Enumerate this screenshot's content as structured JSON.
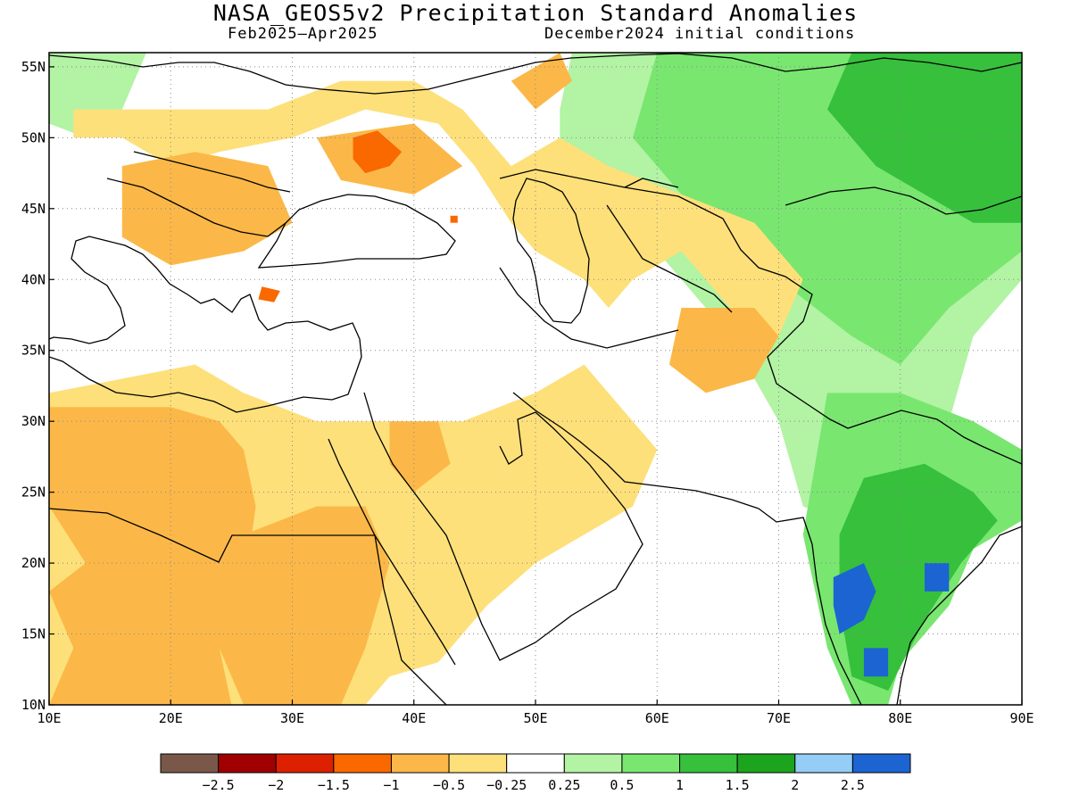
{
  "header": {
    "title": "NASA_GEOS5v2 Precipitation Standard Anomalies",
    "period": "Feb2025–Apr2025",
    "init": "December2024 initial conditions"
  },
  "chart_data": {
    "type": "heatmap",
    "variable": "Precipitation Standard Anomalies",
    "grid": "dotted",
    "x_axis": {
      "range": [
        10,
        90
      ],
      "ticks": [
        10,
        20,
        30,
        40,
        50,
        60,
        70,
        80,
        90
      ],
      "tick_labels": [
        "10E",
        "20E",
        "30E",
        "40E",
        "50E",
        "60E",
        "70E",
        "80E",
        "90E"
      ]
    },
    "y_axis": {
      "range": [
        10,
        56
      ],
      "ticks": [
        10,
        15,
        20,
        25,
        30,
        35,
        40,
        45,
        50,
        55
      ],
      "tick_labels": [
        "10N",
        "15N",
        "20N",
        "25N",
        "30N",
        "35N",
        "40N",
        "45N",
        "50N",
        "55N"
      ]
    },
    "colorbar": {
      "colors": [
        "#7a5849",
        "#a00000",
        "#dc2000",
        "#fa6800",
        "#fbb848",
        "#fde07a",
        "#ffffff",
        "#b2f3a4",
        "#79e670",
        "#36c03c",
        "#1ca41e",
        "#94cdf6",
        "#1b64d2"
      ],
      "labels": [
        "−2.5",
        "−2",
        "−1.5",
        "−1",
        "−0.5",
        "−0.25",
        "0.25",
        "0.5",
        "1",
        "1.5",
        "2",
        "2.5"
      ]
    },
    "regions": [
      {
        "category": 0.5,
        "color": "#b2f3a4",
        "points": [
          [
            53,
            56
          ],
          [
            90,
            56
          ],
          [
            90,
            40
          ],
          [
            86,
            36
          ],
          [
            84,
            30
          ],
          [
            82,
            24
          ],
          [
            78,
            22
          ],
          [
            72,
            24
          ],
          [
            70,
            30
          ],
          [
            66,
            36
          ],
          [
            62,
            40
          ],
          [
            60,
            42
          ],
          [
            56,
            44
          ],
          [
            52,
            46
          ],
          [
            52,
            52
          ]
        ]
      },
      {
        "category": 1,
        "color": "#79e670",
        "points": [
          [
            60,
            56
          ],
          [
            90,
            56
          ],
          [
            90,
            42
          ],
          [
            84,
            38
          ],
          [
            80,
            34
          ],
          [
            76,
            36
          ],
          [
            70,
            40
          ],
          [
            66,
            44
          ],
          [
            62,
            46
          ],
          [
            58,
            50
          ]
        ]
      },
      {
        "category": 1.5,
        "color": "#36c03c",
        "points": [
          [
            76,
            56
          ],
          [
            90,
            56
          ],
          [
            90,
            44
          ],
          [
            86,
            44
          ],
          [
            82,
            46
          ],
          [
            78,
            48
          ],
          [
            74,
            52
          ]
        ]
      },
      {
        "category": 1,
        "color": "#79e670",
        "points": [
          [
            74,
            32
          ],
          [
            80,
            32
          ],
          [
            86,
            30
          ],
          [
            90,
            28
          ],
          [
            90,
            23
          ],
          [
            86,
            21
          ],
          [
            84,
            17
          ],
          [
            80,
            13
          ],
          [
            79,
            10
          ],
          [
            76,
            10
          ],
          [
            74,
            14
          ],
          [
            73,
            18
          ],
          [
            72,
            22
          ],
          [
            73,
            27
          ]
        ]
      },
      {
        "category": 1.5,
        "color": "#36c03c",
        "points": [
          [
            77,
            26
          ],
          [
            82,
            27
          ],
          [
            86,
            25
          ],
          [
            88,
            23
          ],
          [
            85,
            20
          ],
          [
            82,
            16
          ],
          [
            79,
            11
          ],
          [
            76,
            12
          ],
          [
            75,
            17
          ],
          [
            75,
            22
          ]
        ]
      },
      {
        "category": 2.5,
        "color": "#1b64d2",
        "points": [
          [
            74.5,
            19
          ],
          [
            77,
            20
          ],
          [
            78,
            18
          ],
          [
            77,
            16
          ],
          [
            75,
            15
          ],
          [
            74.5,
            17
          ]
        ]
      },
      {
        "category": 2.5,
        "color": "#1b64d2",
        "points": [
          [
            77,
            14
          ],
          [
            79,
            14
          ],
          [
            79,
            12
          ],
          [
            77,
            12
          ]
        ]
      },
      {
        "category": 2.5,
        "color": "#1b64d2",
        "points": [
          [
            82,
            20
          ],
          [
            84,
            20
          ],
          [
            84,
            18
          ],
          [
            82,
            18
          ]
        ]
      },
      {
        "category": 0.5,
        "color": "#b2f3a4",
        "points": [
          [
            10,
            56
          ],
          [
            18,
            56
          ],
          [
            16,
            52
          ],
          [
            13,
            50
          ],
          [
            10,
            51
          ]
        ]
      },
      {
        "category": -0.25,
        "color": "#fde07a",
        "points": [
          [
            12,
            50
          ],
          [
            16,
            50
          ],
          [
            20,
            48
          ],
          [
            24,
            49
          ],
          [
            30,
            50
          ],
          [
            36,
            52
          ],
          [
            42,
            51
          ],
          [
            45,
            48
          ],
          [
            48,
            44
          ],
          [
            50,
            42
          ],
          [
            54,
            40
          ],
          [
            56,
            38
          ],
          [
            58,
            40
          ],
          [
            62,
            42
          ],
          [
            66,
            38
          ],
          [
            70,
            36
          ],
          [
            72,
            40
          ],
          [
            68,
            44
          ],
          [
            62,
            46
          ],
          [
            56,
            48
          ],
          [
            52,
            50
          ],
          [
            48,
            48
          ],
          [
            46,
            50
          ],
          [
            44,
            52
          ],
          [
            40,
            54
          ],
          [
            34,
            54
          ],
          [
            28,
            52
          ],
          [
            22,
            52
          ],
          [
            16,
            52
          ],
          [
            12,
            52
          ]
        ]
      },
      {
        "category": -0.25,
        "color": "#fde07a",
        "points": [
          [
            10,
            32
          ],
          [
            22,
            34
          ],
          [
            26,
            32
          ],
          [
            32,
            30
          ],
          [
            36,
            30
          ],
          [
            44,
            30
          ],
          [
            50,
            32
          ],
          [
            54,
            34
          ],
          [
            58,
            30
          ],
          [
            60,
            28
          ],
          [
            58,
            24
          ],
          [
            54,
            22
          ],
          [
            50,
            20
          ],
          [
            46,
            17
          ],
          [
            42,
            13
          ],
          [
            38,
            12
          ],
          [
            36,
            10
          ],
          [
            10,
            10
          ]
        ]
      },
      {
        "category": -0.5,
        "color": "#fbb848",
        "points": [
          [
            10,
            31
          ],
          [
            20,
            31
          ],
          [
            24,
            30
          ],
          [
            26,
            28
          ],
          [
            27,
            24
          ],
          [
            26,
            18
          ],
          [
            24,
            14
          ],
          [
            25,
            10
          ],
          [
            10,
            10
          ],
          [
            12,
            14
          ],
          [
            10,
            18
          ],
          [
            13,
            20
          ],
          [
            10,
            24
          ]
        ]
      },
      {
        "category": -0.5,
        "color": "#fbb848",
        "points": [
          [
            26,
            22
          ],
          [
            32,
            24
          ],
          [
            36,
            24
          ],
          [
            38,
            20
          ],
          [
            36,
            14
          ],
          [
            34,
            10
          ],
          [
            26,
            10
          ],
          [
            24,
            14
          ],
          [
            24,
            18
          ]
        ]
      },
      {
        "category": -0.5,
        "color": "#fbb848",
        "points": [
          [
            16,
            48
          ],
          [
            22,
            49
          ],
          [
            28,
            48
          ],
          [
            30,
            44
          ],
          [
            26,
            42
          ],
          [
            20,
            41
          ],
          [
            16,
            43
          ]
        ]
      },
      {
        "category": -0.5,
        "color": "#fbb848",
        "points": [
          [
            32,
            50
          ],
          [
            40,
            51
          ],
          [
            44,
            48
          ],
          [
            40,
            46
          ],
          [
            34,
            47
          ]
        ]
      },
      {
        "category": -0.5,
        "color": "#fbb848",
        "points": [
          [
            48,
            54
          ],
          [
            52,
            56
          ],
          [
            53,
            54
          ],
          [
            50,
            52
          ]
        ]
      },
      {
        "category": -0.5,
        "color": "#fbb848",
        "points": [
          [
            62,
            38
          ],
          [
            68,
            38
          ],
          [
            70,
            36
          ],
          [
            68,
            33
          ],
          [
            64,
            32
          ],
          [
            61,
            34
          ]
        ]
      },
      {
        "category": -0.5,
        "color": "#fbb848",
        "points": [
          [
            38,
            30
          ],
          [
            42,
            30
          ],
          [
            43,
            27
          ],
          [
            40,
            25
          ],
          [
            38,
            27
          ]
        ]
      },
      {
        "category": -1,
        "color": "#fa6800",
        "points": [
          [
            35,
            50
          ],
          [
            37,
            50.5
          ],
          [
            39,
            49
          ],
          [
            38,
            48
          ],
          [
            36,
            47.5
          ],
          [
            35,
            48.5
          ]
        ]
      },
      {
        "category": -1,
        "color": "#fa6800",
        "points": [
          [
            27.5,
            39.5
          ],
          [
            29,
            39.2
          ],
          [
            28.5,
            38.4
          ],
          [
            27.2,
            38.6
          ]
        ]
      },
      {
        "category": -1,
        "color": "#fa6800",
        "points": [
          [
            43,
            44.5
          ],
          [
            43.6,
            44.5
          ],
          [
            43.6,
            44
          ],
          [
            43,
            44
          ]
        ]
      }
    ],
    "borders_shown": true,
    "coastlines_shown": true
  }
}
